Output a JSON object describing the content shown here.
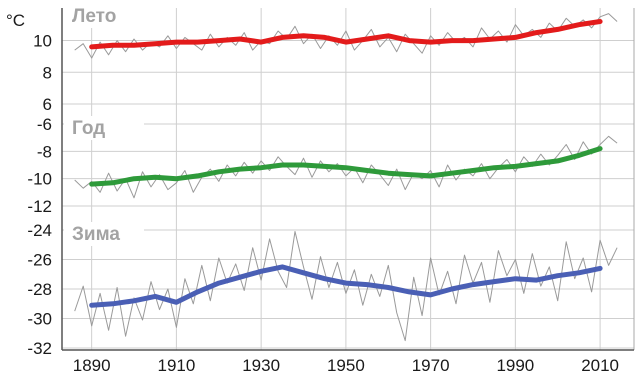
{
  "chart_data": {
    "type": "line",
    "unit": "°C",
    "x_ticks": [
      1890,
      1910,
      1930,
      1950,
      1970,
      1990,
      2010
    ],
    "xlim": [
      1883,
      2018
    ],
    "grid": true,
    "panels": [
      {
        "title": "Лето",
        "color": "#e31b1b",
        "ylim": [
          6,
          11.8
        ],
        "y_ticks": [
          6,
          8,
          10
        ],
        "series": [
          {
            "type": "annual",
            "x": [
              1886,
              1888,
              1890,
              1892,
              1894,
              1896,
              1898,
              1900,
              1902,
              1904,
              1906,
              1908,
              1910,
              1912,
              1914,
              1916,
              1918,
              1920,
              1922,
              1924,
              1926,
              1928,
              1930,
              1932,
              1934,
              1936,
              1938,
              1940,
              1942,
              1944,
              1946,
              1948,
              1950,
              1952,
              1954,
              1956,
              1958,
              1960,
              1962,
              1964,
              1966,
              1968,
              1970,
              1972,
              1974,
              1976,
              1978,
              1980,
              1982,
              1984,
              1986,
              1988,
              1990,
              1992,
              1994,
              1996,
              1998,
              2000,
              2002,
              2004,
              2006,
              2008,
              2010,
              2012,
              2014
            ],
            "y": [
              9.4,
              9.8,
              8.9,
              9.9,
              9.1,
              10.0,
              9.3,
              10.1,
              9.4,
              9.9,
              9.6,
              10.3,
              9.5,
              10.2,
              9.8,
              9.4,
              10.4,
              9.6,
              10.2,
              9.7,
              10.5,
              9.4,
              10.0,
              9.8,
              10.6,
              10.1,
              10.9,
              9.8,
              10.4,
              9.5,
              10.3,
              9.7,
              10.6,
              9.4,
              10.0,
              10.7,
              9.6,
              10.2,
              9.3,
              10.4,
              9.8,
              9.2,
              10.3,
              9.7,
              10.5,
              9.9,
              10.2,
              9.6,
              10.8,
              10.1,
              10.6,
              9.9,
              11.0,
              10.3,
              10.7,
              10.2,
              11.1,
              10.6,
              11.4,
              10.9,
              11.3,
              10.8,
              11.5,
              11.7,
              11.2
            ]
          },
          {
            "type": "smoothed",
            "x": [
              1890,
              1895,
              1900,
              1905,
              1910,
              1915,
              1920,
              1925,
              1930,
              1935,
              1940,
              1945,
              1950,
              1955,
              1960,
              1965,
              1970,
              1975,
              1980,
              1985,
              1990,
              1995,
              2000,
              2005,
              2010
            ],
            "y": [
              9.6,
              9.7,
              9.7,
              9.8,
              9.9,
              9.9,
              10.0,
              10.1,
              9.9,
              10.2,
              10.3,
              10.2,
              9.9,
              10.1,
              10.3,
              10.0,
              9.9,
              10.0,
              10.0,
              10.1,
              10.2,
              10.5,
              10.7,
              11.0,
              11.2
            ]
          }
        ]
      },
      {
        "title": "Год",
        "color": "#2e9a3a",
        "ylim": [
          -12,
          -6
        ],
        "y_ticks": [
          -12,
          -10,
          -8,
          -6
        ],
        "series": [
          {
            "type": "annual",
            "x": [
              1886,
              1888,
              1890,
              1892,
              1894,
              1896,
              1898,
              1900,
              1902,
              1904,
              1906,
              1908,
              1910,
              1912,
              1914,
              1916,
              1918,
              1920,
              1922,
              1924,
              1926,
              1928,
              1930,
              1932,
              1934,
              1936,
              1938,
              1940,
              1942,
              1944,
              1946,
              1948,
              1950,
              1952,
              1954,
              1956,
              1958,
              1960,
              1962,
              1964,
              1966,
              1968,
              1970,
              1972,
              1974,
              1976,
              1978,
              1980,
              1982,
              1984,
              1986,
              1988,
              1990,
              1992,
              1994,
              1996,
              1998,
              2000,
              2002,
              2004,
              2006,
              2008,
              2010,
              2012,
              2014
            ],
            "y": [
              -10.1,
              -10.7,
              -10.2,
              -11.0,
              -9.6,
              -10.9,
              -10.0,
              -11.4,
              -9.5,
              -10.6,
              -9.7,
              -10.8,
              -10.3,
              -9.4,
              -11.0,
              -9.9,
              -9.3,
              -10.2,
              -9.0,
              -9.8,
              -8.8,
              -9.6,
              -8.7,
              -9.4,
              -8.4,
              -9.1,
              -9.7,
              -8.5,
              -9.9,
              -8.7,
              -9.5,
              -8.9,
              -9.8,
              -9.2,
              -10.3,
              -9.0,
              -9.7,
              -10.5,
              -9.3,
              -10.8,
              -9.6,
              -10.0,
              -9.4,
              -10.6,
              -9.0,
              -10.1,
              -9.3,
              -9.8,
              -8.9,
              -10.0,
              -9.2,
              -8.6,
              -9.5,
              -8.4,
              -9.1,
              -8.2,
              -9.0,
              -8.3,
              -7.5,
              -8.6,
              -7.3,
              -8.2,
              -7.5,
              -6.9,
              -7.4
            ]
          },
          {
            "type": "smoothed",
            "x": [
              1890,
              1895,
              1900,
              1905,
              1910,
              1915,
              1920,
              1925,
              1930,
              1935,
              1940,
              1945,
              1950,
              1955,
              1960,
              1965,
              1970,
              1975,
              1980,
              1985,
              1990,
              1995,
              2000,
              2005,
              2010
            ],
            "y": [
              -10.4,
              -10.3,
              -10.0,
              -9.9,
              -10.0,
              -9.8,
              -9.5,
              -9.3,
              -9.2,
              -9.0,
              -9.0,
              -9.1,
              -9.2,
              -9.4,
              -9.6,
              -9.7,
              -9.8,
              -9.6,
              -9.4,
              -9.2,
              -9.1,
              -8.9,
              -8.7,
              -8.3,
              -7.8
            ]
          }
        ]
      },
      {
        "title": "Зима",
        "color": "#4a5fb5",
        "ylim": [
          -32,
          -24
        ],
        "y_ticks": [
          -32,
          -30,
          -28,
          -26,
          -24
        ],
        "series": [
          {
            "type": "annual",
            "x": [
              1886,
              1888,
              1890,
              1892,
              1894,
              1896,
              1898,
              1900,
              1902,
              1904,
              1906,
              1908,
              1910,
              1912,
              1914,
              1916,
              1918,
              1920,
              1922,
              1924,
              1926,
              1928,
              1930,
              1932,
              1934,
              1936,
              1938,
              1940,
              1942,
              1944,
              1946,
              1948,
              1950,
              1952,
              1954,
              1956,
              1958,
              1960,
              1962,
              1964,
              1966,
              1968,
              1970,
              1972,
              1974,
              1976,
              1978,
              1980,
              1982,
              1984,
              1986,
              1988,
              1990,
              1992,
              1994,
              1996,
              1998,
              2000,
              2002,
              2004,
              2006,
              2008,
              2010,
              2012,
              2014
            ],
            "y": [
              -29.5,
              -27.8,
              -30.5,
              -28.3,
              -30.8,
              -27.9,
              -31.2,
              -28.6,
              -30.1,
              -27.5,
              -29.4,
              -28.0,
              -30.6,
              -27.3,
              -29.0,
              -26.4,
              -28.8,
              -25.9,
              -27.6,
              -26.3,
              -28.1,
              -25.2,
              -27.4,
              -24.6,
              -26.8,
              -27.9,
              -24.1,
              -26.5,
              -28.7,
              -25.8,
              -27.9,
              -26.2,
              -28.3,
              -26.7,
              -29.1,
              -27.0,
              -28.5,
              -26.4,
              -29.6,
              -31.5,
              -27.2,
              -29.8,
              -25.9,
              -28.4,
              -26.8,
              -29.0,
              -25.7,
              -27.6,
              -26.2,
              -28.9,
              -25.4,
              -27.1,
              -26.0,
              -28.3,
              -25.6,
              -27.8,
              -26.5,
              -28.8,
              -24.8,
              -27.3,
              -25.9,
              -28.2,
              -24.7,
              -26.4,
              -25.2
            ]
          },
          {
            "type": "smoothed",
            "x": [
              1890,
              1895,
              1900,
              1905,
              1910,
              1915,
              1920,
              1925,
              1930,
              1935,
              1940,
              1945,
              1950,
              1955,
              1960,
              1965,
              1970,
              1975,
              1980,
              1985,
              1990,
              1995,
              2000,
              2005,
              2010
            ],
            "y": [
              -29.1,
              -29.0,
              -28.8,
              -28.5,
              -28.9,
              -28.2,
              -27.6,
              -27.2,
              -26.8,
              -26.5,
              -26.9,
              -27.3,
              -27.6,
              -27.7,
              -27.9,
              -28.2,
              -28.4,
              -28.0,
              -27.7,
              -27.5,
              -27.3,
              -27.4,
              -27.1,
              -26.9,
              -26.6
            ]
          }
        ]
      }
    ]
  }
}
